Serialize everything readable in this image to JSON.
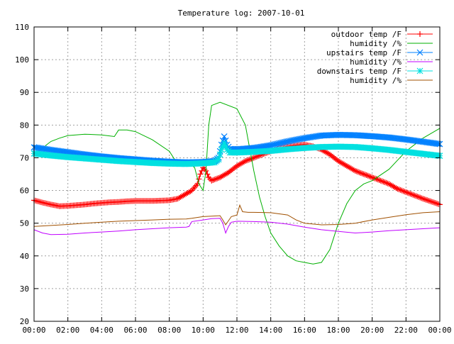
{
  "chart_data": {
    "type": "line",
    "title": "Temperature log: 2007-10-01",
    "xlabel": "",
    "ylabel": "",
    "ylim": [
      20,
      110
    ],
    "xlim": [
      "00:00",
      "24:00"
    ],
    "grid": true,
    "legend_position": "top-right",
    "x_tick_labels": [
      "00:00",
      "02:00",
      "04:00",
      "06:00",
      "08:00",
      "10:00",
      "12:00",
      "14:00",
      "16:00",
      "18:00",
      "20:00",
      "22:00",
      "00:00"
    ],
    "y_tick_labels": [
      "20",
      "30",
      "40",
      "50",
      "60",
      "70",
      "80",
      "90",
      "100",
      "110"
    ],
    "series": [
      {
        "name": "outdoor temp /F",
        "color": "#ff0000",
        "marker": "plus",
        "x": [
          "00:00",
          "00:30",
          "01:00",
          "01:30",
          "02:00",
          "02:30",
          "03:00",
          "03:30",
          "04:00",
          "04:30",
          "05:00",
          "05:30",
          "06:00",
          "06:30",
          "07:00",
          "07:30",
          "08:00",
          "08:30",
          "09:00",
          "09:20",
          "09:40",
          "09:50",
          "10:00",
          "10:10",
          "10:20",
          "10:30",
          "11:00",
          "11:30",
          "12:00",
          "12:30",
          "13:00",
          "13:30",
          "14:00",
          "14:30",
          "15:00",
          "15:30",
          "16:00",
          "16:30",
          "17:00",
          "17:30",
          "18:00",
          "18:30",
          "19:00",
          "19:30",
          "20:00",
          "20:30",
          "21:00",
          "21:30",
          "22:00",
          "22:30",
          "23:00",
          "23:30",
          "24:00"
        ],
        "y": [
          57,
          56.3,
          55.7,
          55.2,
          55.3,
          55.5,
          55.7,
          56,
          56.2,
          56.4,
          56.5,
          56.7,
          56.8,
          56.8,
          56.8,
          56.9,
          57,
          57.5,
          59,
          60,
          62,
          65,
          67,
          66,
          64,
          63,
          64,
          65.5,
          67.5,
          69,
          70,
          71,
          72,
          72.8,
          73.4,
          73.8,
          74,
          73.5,
          72.5,
          71,
          69,
          67.5,
          66,
          65,
          64,
          63,
          62,
          60.5,
          59.5,
          58.5,
          57.5,
          56.6,
          55.7
        ]
      },
      {
        "name": "humidity /%",
        "color": "#00b000",
        "marker": "none",
        "x": [
          "00:00",
          "00:30",
          "01:00",
          "01:30",
          "02:00",
          "03:00",
          "04:00",
          "04:45",
          "05:00",
          "05:30",
          "06:00",
          "07:00",
          "08:00",
          "08:30",
          "09:00",
          "09:30",
          "09:45",
          "10:00",
          "10:10",
          "10:20",
          "10:30",
          "11:00",
          "12:00",
          "12:30",
          "13:00",
          "13:20",
          "13:40",
          "14:00",
          "14:30",
          "15:00",
          "15:30",
          "16:00",
          "16:30",
          "17:00",
          "17:30",
          "18:00",
          "18:30",
          "19:00",
          "19:30",
          "20:00",
          "21:00",
          "22:00",
          "23:00",
          "24:00"
        ],
        "y": [
          71,
          73,
          75,
          76,
          76.8,
          77.2,
          77,
          76.5,
          78.5,
          78.5,
          78,
          75.5,
          72,
          68,
          69,
          67,
          62,
          60,
          66,
          80,
          86,
          87,
          85,
          80,
          66,
          58,
          52,
          47,
          43,
          40,
          38.5,
          38,
          37.5,
          38,
          42,
          50,
          56,
          60,
          62,
          63,
          66.5,
          72,
          76,
          79
        ]
      },
      {
        "name": "upstairs temp /F",
        "color": "#0080ff",
        "marker": "cross",
        "x": [
          "00:00",
          "01:00",
          "02:00",
          "03:00",
          "04:00",
          "05:00",
          "06:00",
          "07:00",
          "08:00",
          "09:00",
          "10:00",
          "10:40",
          "10:55",
          "11:05",
          "11:15",
          "11:25",
          "11:35",
          "12:00",
          "13:00",
          "14:00",
          "15:00",
          "16:00",
          "17:00",
          "18:00",
          "19:00",
          "20:00",
          "21:00",
          "22:00",
          "23:00",
          "24:00"
        ],
        "y": [
          73.2,
          72.4,
          71.7,
          71,
          70.4,
          69.9,
          69.5,
          69.1,
          68.8,
          68.6,
          68.7,
          69,
          70,
          74,
          76.5,
          74,
          72.7,
          72.6,
          73,
          73.8,
          75,
          76,
          76.8,
          77,
          76.9,
          76.6,
          76.2,
          75.6,
          74.9,
          74.2
        ]
      },
      {
        "name": "humidity /%",
        "color": "#c000ff",
        "marker": "none",
        "x": [
          "00:00",
          "00:30",
          "01:00",
          "02:00",
          "03:00",
          "04:00",
          "05:00",
          "06:00",
          "07:00",
          "08:00",
          "09:00",
          "09:10",
          "09:20",
          "10:00",
          "10:30",
          "11:00",
          "11:10",
          "11:20",
          "11:30",
          "11:40",
          "12:00",
          "13:00",
          "14:00",
          "15:00",
          "16:00",
          "17:00",
          "18:00",
          "19:00",
          "20:00",
          "21:00",
          "22:00",
          "23:00",
          "24:00"
        ],
        "y": [
          48,
          47,
          46.5,
          46.6,
          47,
          47.3,
          47.6,
          48,
          48.3,
          48.6,
          48.8,
          49,
          50.5,
          51,
          51.4,
          51.5,
          50,
          47,
          49,
          50.3,
          50.6,
          50.5,
          50.3,
          49.7,
          48.8,
          48,
          47.5,
          47,
          47.3,
          47.7,
          48,
          48.3,
          48.6
        ]
      },
      {
        "name": "downstairs temp /F",
        "color": "#00e0e0",
        "marker": "star",
        "x": [
          "00:00",
          "01:00",
          "02:00",
          "03:00",
          "04:00",
          "05:00",
          "06:00",
          "07:00",
          "08:00",
          "09:00",
          "10:00",
          "10:40",
          "10:55",
          "11:05",
          "11:15",
          "11:25",
          "11:35",
          "12:00",
          "13:00",
          "14:00",
          "15:00",
          "16:00",
          "17:00",
          "18:00",
          "19:00",
          "20:00",
          "21:00",
          "22:00",
          "23:00",
          "24:00"
        ],
        "y": [
          71.3,
          70.7,
          70.2,
          69.8,
          69.4,
          69,
          68.7,
          68.4,
          68.2,
          68.1,
          68.3,
          68.6,
          69.5,
          72.5,
          74.5,
          72.5,
          71.6,
          71.6,
          71.8,
          72.1,
          72.6,
          73,
          73.3,
          73.4,
          73.3,
          72.9,
          72.4,
          71.8,
          71.2,
          70.6
        ]
      },
      {
        "name": "humidity /%",
        "color": "#a05000",
        "marker": "none",
        "x": [
          "00:00",
          "01:00",
          "02:00",
          "03:00",
          "04:00",
          "05:00",
          "06:00",
          "07:00",
          "08:00",
          "09:00",
          "09:20",
          "10:00",
          "11:00",
          "11:10",
          "11:20",
          "11:40",
          "12:00",
          "12:10",
          "12:20",
          "12:40",
          "13:00",
          "14:00",
          "15:00",
          "15:30",
          "16:00",
          "17:00",
          "18:00",
          "19:00",
          "20:00",
          "21:00",
          "22:00",
          "23:00",
          "24:00"
        ],
        "y": [
          49,
          49.3,
          49.6,
          50,
          50.3,
          50.6,
          50.8,
          51,
          51.2,
          51.3,
          51.5,
          52,
          52.3,
          51,
          49.5,
          52,
          52.5,
          55.5,
          53.5,
          53.3,
          53.3,
          53.2,
          52.5,
          51,
          50,
          49.5,
          49.6,
          50,
          51,
          51.8,
          52.6,
          53.2,
          53.5
        ]
      }
    ]
  }
}
